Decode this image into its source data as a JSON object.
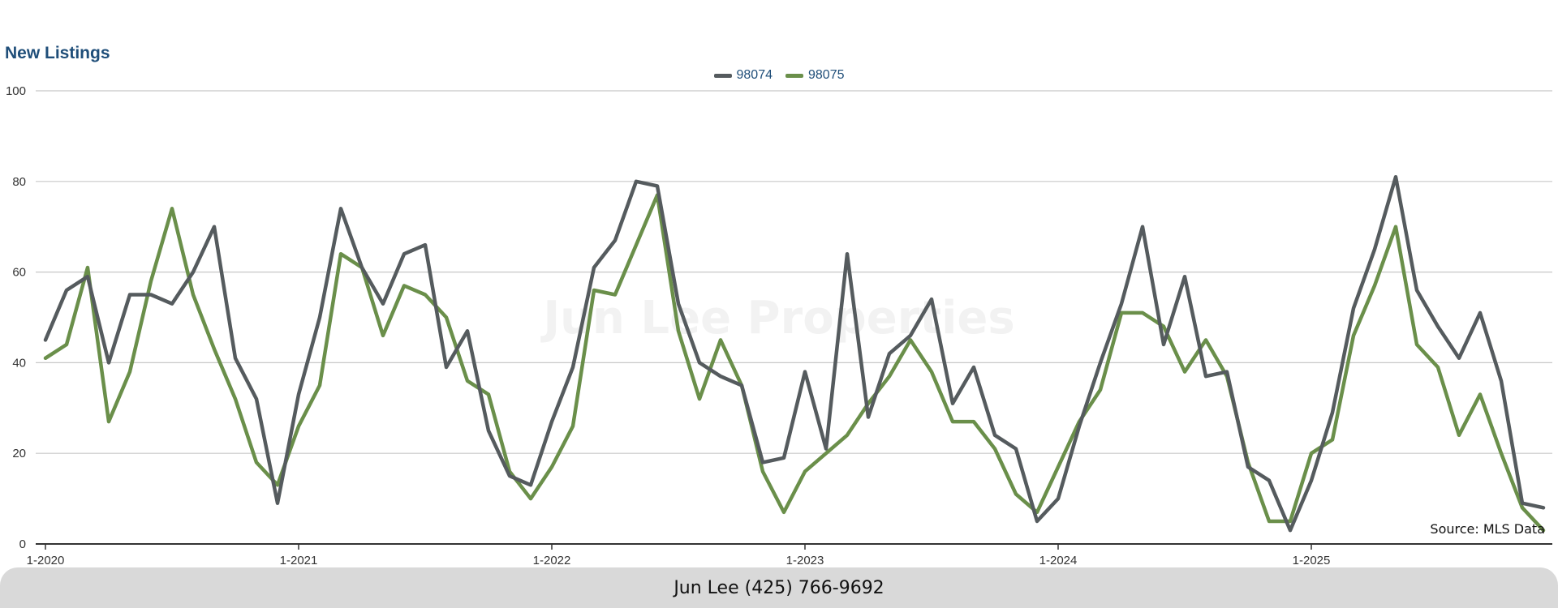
{
  "chart_data": {
    "type": "line",
    "title": "New Listings",
    "xlabel": "",
    "ylabel": "",
    "ylim": [
      0,
      100
    ],
    "yticks": [
      0,
      20,
      40,
      60,
      80,
      100
    ],
    "x_start": "1-2020",
    "xtick_labels": [
      "1-2020",
      "1-2021",
      "1-2022",
      "1-2023",
      "1-2024",
      "1-2025"
    ],
    "grid": true,
    "legend_position": "top-center",
    "series": [
      {
        "name": "98074",
        "color": "#555b5e",
        "values": [
          45,
          56,
          59,
          40,
          55,
          55,
          53,
          60,
          70,
          41,
          32,
          9,
          33,
          50,
          74,
          61,
          53,
          64,
          66,
          39,
          47,
          25,
          15,
          13,
          27,
          39,
          61,
          67,
          80,
          79,
          53,
          40,
          37,
          35,
          18,
          19,
          38,
          21,
          64,
          28,
          42,
          46,
          54,
          31,
          39,
          24,
          21,
          5,
          10,
          26,
          40,
          53,
          70,
          44,
          59,
          37,
          38,
          17,
          14,
          3,
          14,
          29,
          52,
          65,
          81,
          56,
          48,
          41,
          51,
          36,
          9,
          8
        ]
      },
      {
        "name": "98075",
        "color": "#6a8f4a",
        "values": [
          41,
          44,
          61,
          27,
          38,
          58,
          74,
          55,
          43,
          32,
          18,
          13,
          26,
          35,
          64,
          61,
          46,
          57,
          55,
          50,
          36,
          33,
          16,
          10,
          17,
          26,
          56,
          55,
          66,
          77,
          47,
          32,
          45,
          35,
          16,
          7,
          16,
          20,
          24,
          31,
          37,
          45,
          38,
          27,
          27,
          21,
          11,
          7,
          17,
          27,
          34,
          51,
          51,
          48,
          38,
          45,
          37,
          18,
          5,
          5,
          20,
          23,
          46,
          57,
          70,
          44,
          39,
          24,
          33,
          20,
          8,
          3
        ]
      }
    ],
    "source_note": "Source: MLS Data",
    "watermark": "Jun Lee Properties"
  },
  "footer": {
    "contact": "Jun Lee (425) 766-9692"
  }
}
